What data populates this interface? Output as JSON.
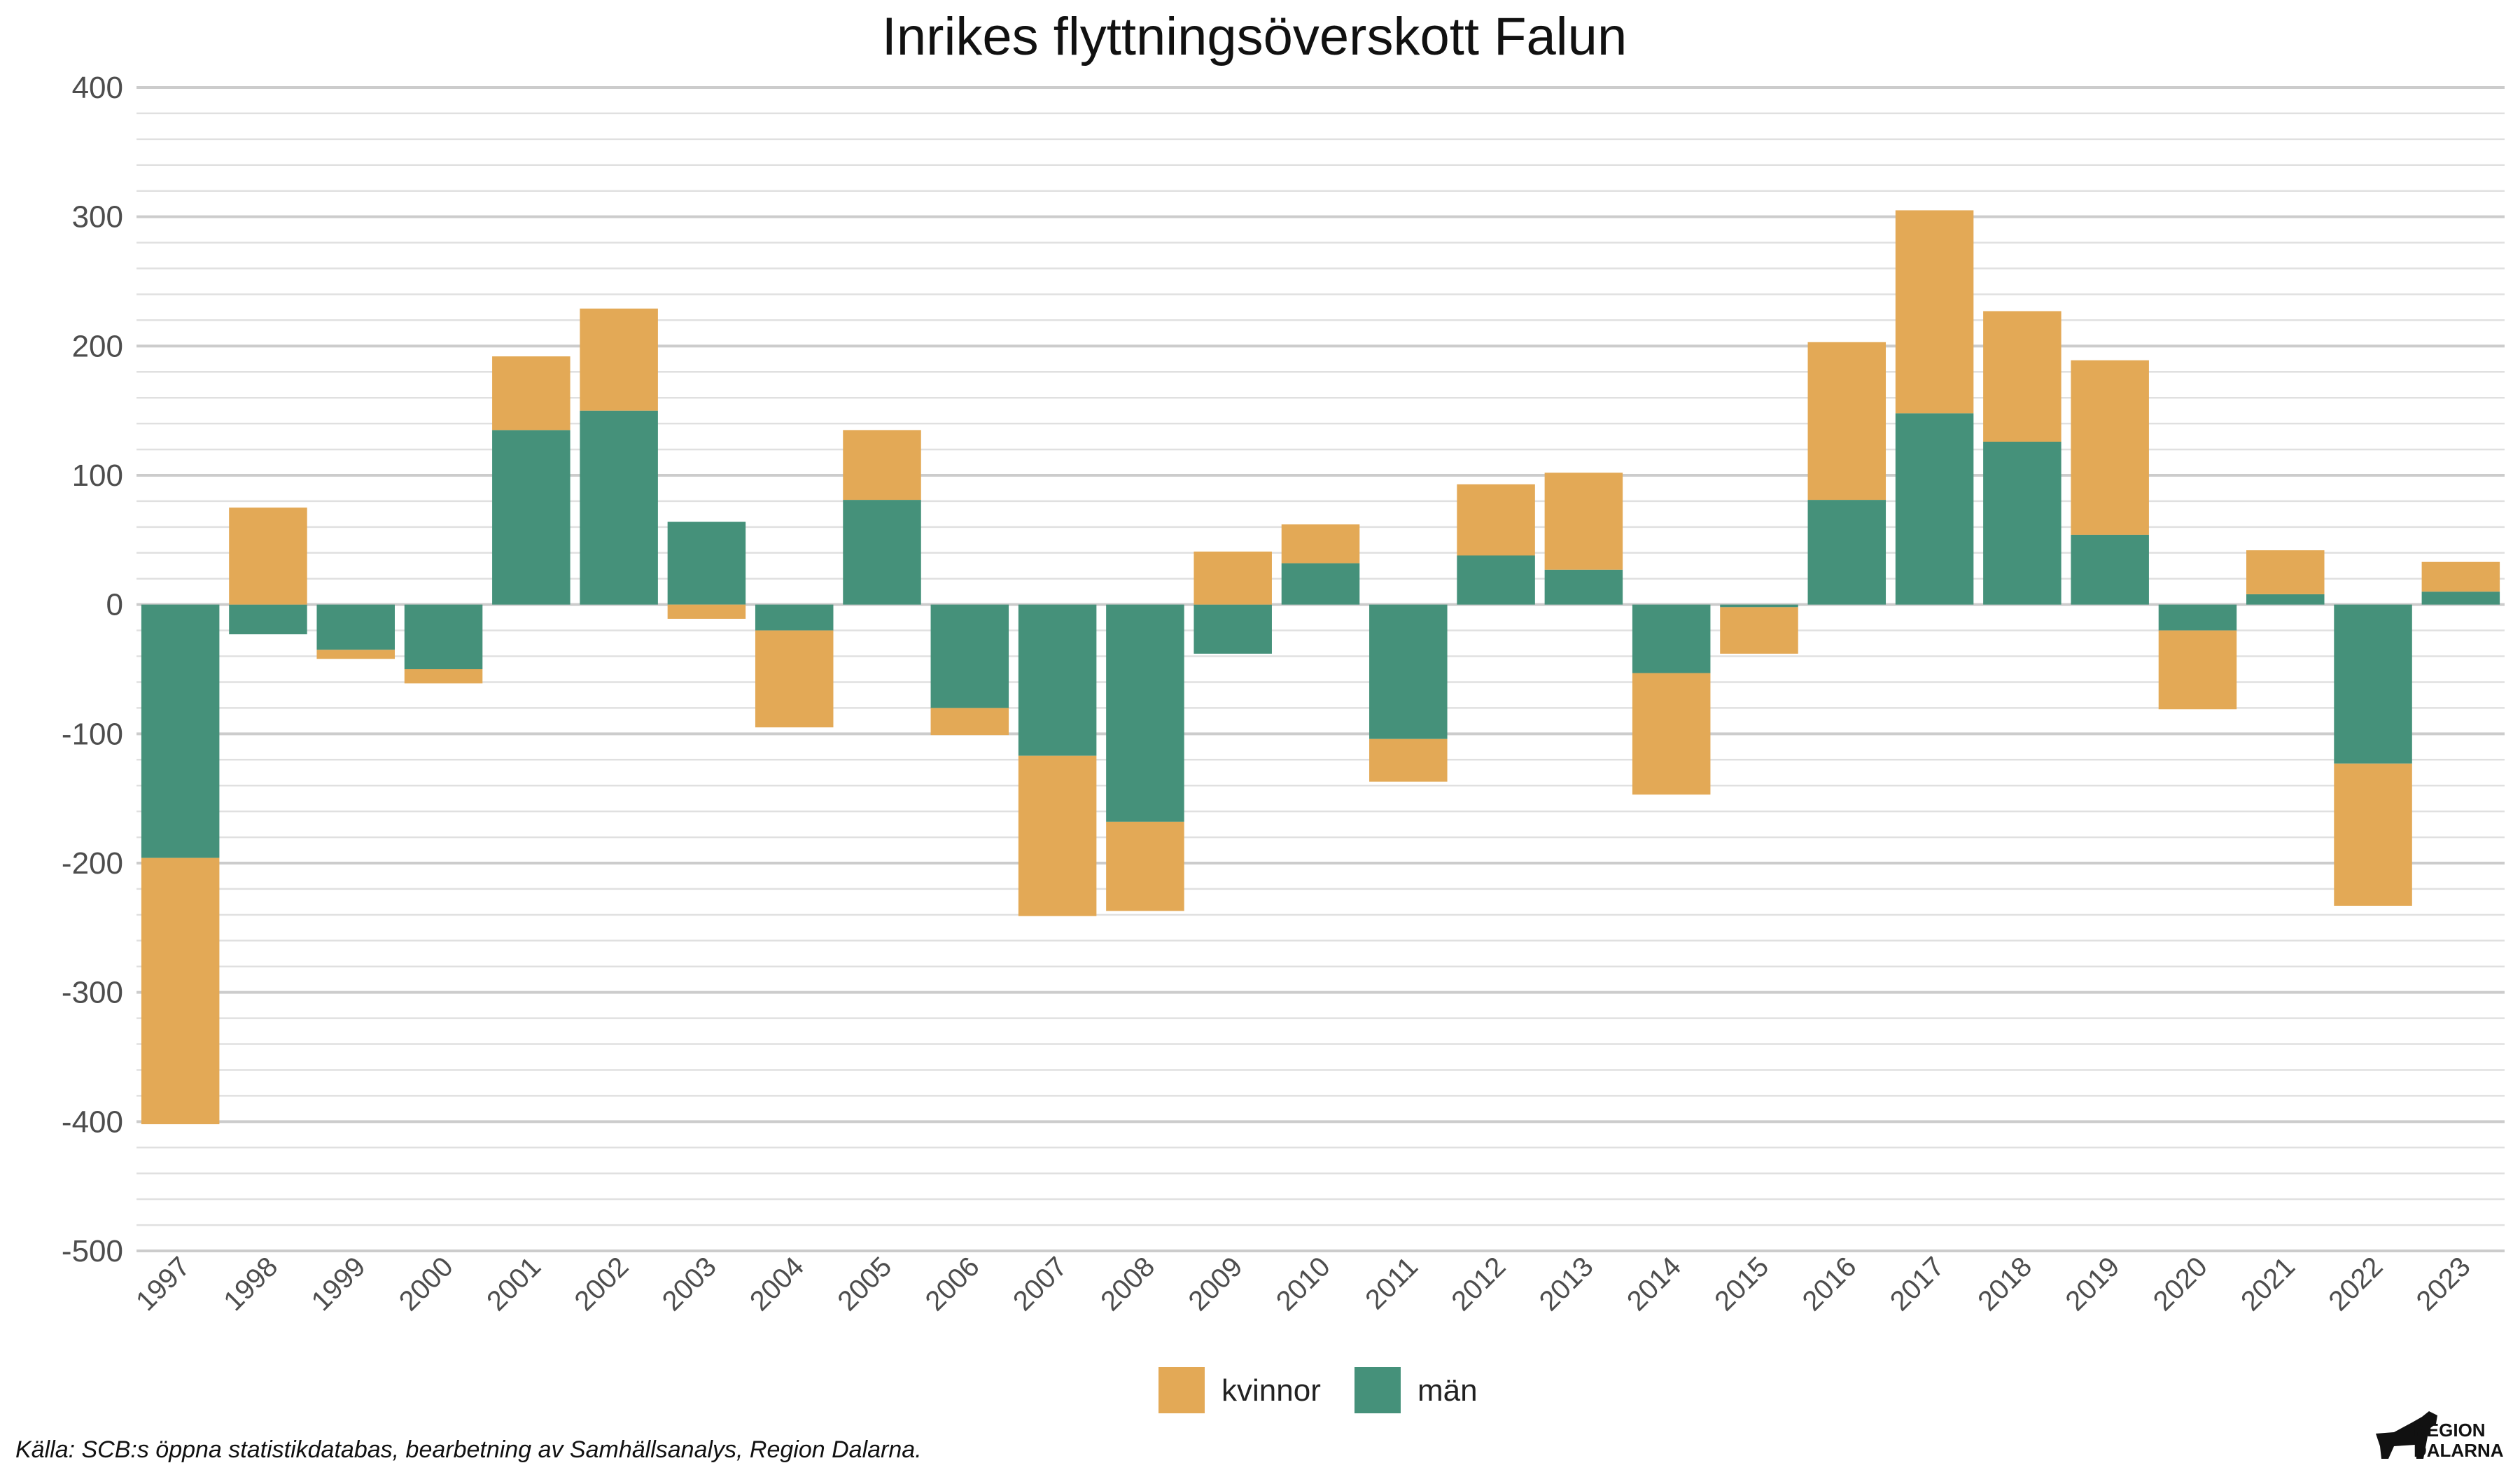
{
  "chart_data": {
    "type": "bar",
    "stacked": true,
    "title": "Inrikes flyttningsöverskott Falun",
    "categories": [
      "1997",
      "1998",
      "1999",
      "2000",
      "2001",
      "2002",
      "2003",
      "2004",
      "2005",
      "2006",
      "2007",
      "2008",
      "2009",
      "2010",
      "2011",
      "2012",
      "2013",
      "2014",
      "2015",
      "2016",
      "2017",
      "2018",
      "2019",
      "2020",
      "2021",
      "2022",
      "2023"
    ],
    "series": [
      {
        "name": "kvinnor",
        "color": "#E3A956",
        "values": [
          -206,
          75,
          -7,
          -11,
          57,
          79,
          -11,
          -75,
          54,
          -21,
          -124,
          -69,
          41,
          30,
          -33,
          55,
          75,
          -94,
          -36,
          122,
          157,
          101,
          135,
          -61,
          34,
          -110,
          23
        ]
      },
      {
        "name": "män",
        "color": "#45917A",
        "values": [
          -196,
          -23,
          -35,
          -50,
          135,
          150,
          64,
          -20,
          81,
          -80,
          -117,
          -168,
          -38,
          32,
          -104,
          38,
          27,
          -53,
          -2,
          81,
          148,
          126,
          54,
          -20,
          8,
          -123,
          10
        ]
      }
    ],
    "ylim": [
      -500,
      400
    ],
    "yticks": [
      "400",
      "300",
      "200",
      "100",
      "0",
      "-100",
      "-200",
      "-300",
      "-400",
      "-500"
    ],
    "grid": true,
    "legend": "bottom",
    "xlabel": "",
    "ylabel": ""
  },
  "source": "Källa: SCB:s öppna statistikdatabas, bearbetning av Samhällsanalys, Region Dalarna.",
  "logo": {
    "line1": "REGION",
    "line2": "DALARNA"
  }
}
